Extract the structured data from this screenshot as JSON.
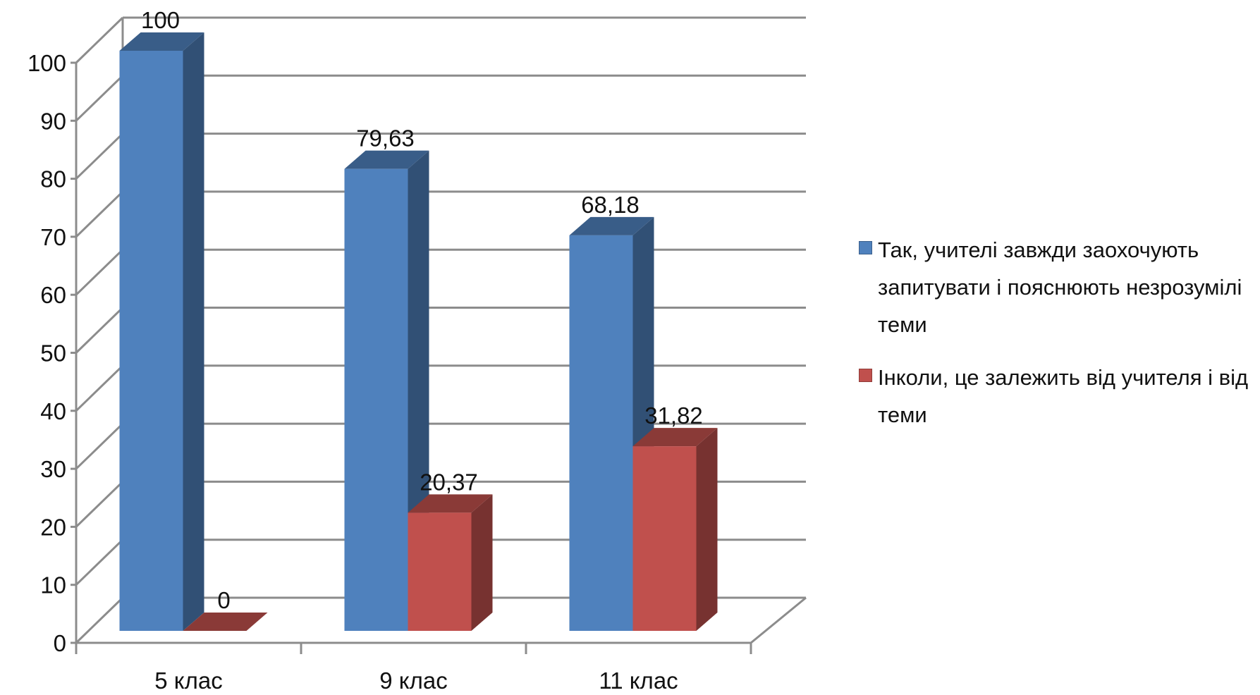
{
  "chart_data": {
    "type": "bar",
    "categories": [
      "5 клас",
      "9 клас",
      "11 клас"
    ],
    "series": [
      {
        "name": "Так, учителі завжди заохочують запитувати і пояснюють незрозумілі теми",
        "values": [
          100,
          79.63,
          68.18
        ],
        "labels": [
          "100",
          "79,63",
          "68,18"
        ],
        "color": "#4F81BD"
      },
      {
        "name": "Інколи, це залежить від учителя і від теми",
        "values": [
          0,
          20.37,
          31.82
        ],
        "labels": [
          "0",
          "20,37",
          "31,82"
        ],
        "color": "#C0504D"
      }
    ],
    "yticks": [
      "0",
      "10",
      "20",
      "30",
      "40",
      "50",
      "60",
      "70",
      "80",
      "90",
      "100"
    ],
    "ylim": [
      0,
      100
    ],
    "grid": true,
    "legend": "right",
    "style": "3d-clustered-column"
  }
}
